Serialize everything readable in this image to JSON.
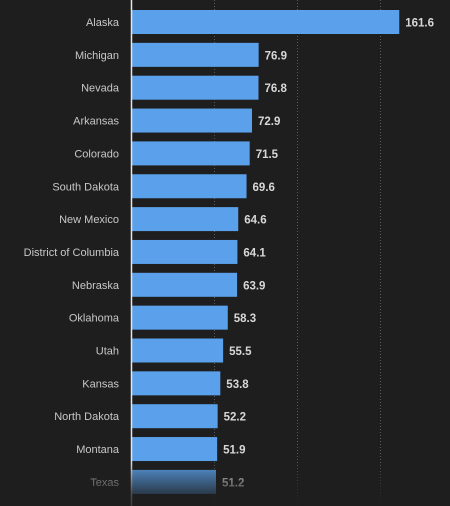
{
  "chart_data": {
    "type": "bar",
    "orientation": "horizontal",
    "categories": [
      "Alaska",
      "Michigan",
      "Nevada",
      "Arkansas",
      "Colorado",
      "South Dakota",
      "New Mexico",
      "District of Columbia",
      "Nebraska",
      "Oklahoma",
      "Utah",
      "Kansas",
      "North Dakota",
      "Montana",
      "Texas"
    ],
    "values": [
      161.6,
      76.9,
      76.8,
      72.9,
      71.5,
      69.6,
      64.6,
      64.1,
      63.9,
      58.3,
      55.5,
      53.8,
      52.2,
      51.9,
      51.2
    ],
    "value_labels": [
      "161.6",
      "76.9",
      "76.8",
      "72.9",
      "71.5",
      "69.6",
      "64.6",
      "64.1",
      "63.9",
      "58.3",
      "55.5",
      "53.8",
      "52.2",
      "51.9",
      "51.2"
    ],
    "xlim": [
      0,
      200
    ],
    "grid": true,
    "title": "",
    "xlabel": "",
    "ylabel": "",
    "colors": {
      "bar": "#5aa0ea",
      "background": "#1e1e1e",
      "grid": "#5a5a5a",
      "label_text": "#c8c8c8",
      "value_text": "#d8d8d8",
      "axis_line": "#e6e6e6"
    }
  }
}
